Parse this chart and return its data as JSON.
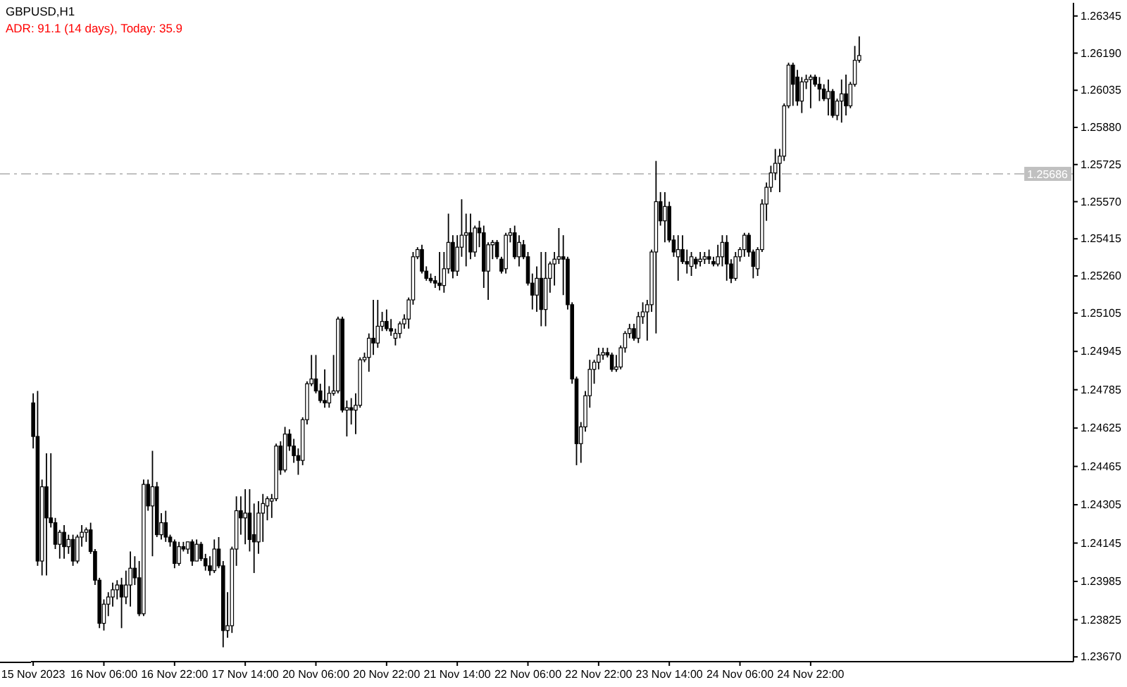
{
  "chart_data": {
    "type": "candlestick",
    "title": "GBPUSD,H1",
    "annotations": [
      "ADR: 91.1 (14 days), Today: 35.9"
    ],
    "color": "#000000",
    "ylim": [
      1.2365,
      1.264
    ],
    "yticks": [
      {
        "value": 1.2367,
        "label": "1.23670"
      },
      1.23825,
      1.23985,
      1.24145,
      1.24305,
      1.24465,
      1.24625,
      1.24785,
      1.24945,
      1.25105,
      {
        "value": 1.2526,
        "label": "1.25260"
      },
      1.25415,
      {
        "value": 1.2557,
        "label": "1.25570"
      },
      1.25725,
      {
        "value": 1.2588,
        "label": "1.25880"
      },
      1.26035,
      {
        "value": 1.2619,
        "label": "1.26190"
      },
      1.26345
    ],
    "ref_lines": [
      {
        "axis": "y",
        "value": 1.25686,
        "label": "1.25686",
        "color": "#c0c0c0",
        "line_style": "dashed"
      }
    ],
    "categories": [
      "15 Nov 2023",
      null,
      null,
      null,
      null,
      null,
      null,
      null,
      null,
      null,
      null,
      null,
      null,
      null,
      null,
      null,
      "16 Nov 06:00",
      null,
      null,
      null,
      null,
      null,
      null,
      null,
      null,
      null,
      null,
      null,
      null,
      null,
      null,
      null,
      "16 Nov 22:00",
      null,
      null,
      null,
      null,
      null,
      null,
      null,
      null,
      null,
      null,
      null,
      null,
      null,
      null,
      null,
      "17 Nov 14:00",
      null,
      null,
      null,
      null,
      null,
      null,
      null,
      null,
      null,
      null,
      null,
      null,
      null,
      null,
      null,
      "20 Nov 06:00",
      null,
      null,
      null,
      null,
      null,
      null,
      null,
      null,
      null,
      null,
      null,
      null,
      null,
      null,
      null,
      "20 Nov 22:00",
      null,
      null,
      null,
      null,
      null,
      null,
      null,
      null,
      null,
      null,
      null,
      null,
      null,
      null,
      null,
      "21 Nov 14:00",
      null,
      null,
      null,
      null,
      null,
      null,
      null,
      null,
      null,
      null,
      null,
      null,
      null,
      null,
      null,
      "22 Nov 06:00",
      null,
      null,
      null,
      null,
      null,
      null,
      null,
      null,
      null,
      null,
      null,
      null,
      null,
      null,
      null,
      "22 Nov 22:00",
      null,
      null,
      null,
      null,
      null,
      null,
      null,
      null,
      null,
      null,
      null,
      null,
      null,
      null,
      null,
      "23 Nov 14:00",
      null,
      null,
      null,
      null,
      null,
      null,
      null,
      null,
      null,
      null,
      null,
      null,
      null,
      null,
      null,
      "24 Nov 06:00",
      null,
      null,
      null,
      null,
      null,
      null,
      null,
      null,
      null,
      null,
      null,
      null,
      null,
      null,
      null,
      "24 Nov 22:00",
      null,
      null,
      null,
      null,
      null,
      null,
      null,
      null,
      null,
      null,
      null,
      null,
      null,
      null,
      null,
      null,
      null,
      null,
      null,
      null,
      null,
      null,
      null,
      null,
      null,
      null,
      null,
      null,
      null,
      null,
      null,
      null,
      null,
      null,
      null,
      null,
      null,
      null,
      null,
      null,
      null,
      null,
      null,
      null,
      null,
      null,
      null,
      null,
      null,
      null,
      null,
      null,
      null,
      null,
      null,
      null,
      null,
      null,
      null
    ],
    "ohlc": [
      [
        1.2473,
        1.2477,
        1.2454,
        1.2459
      ],
      [
        1.2459,
        1.2478,
        1.2405,
        1.2407
      ],
      [
        1.2407,
        1.2441,
        1.2401,
        1.2438
      ],
      [
        1.2438,
        1.2452,
        1.2401,
        1.2425
      ],
      [
        1.2425,
        1.2452,
        1.2421,
        1.2423
      ],
      [
        1.2423,
        1.2425,
        1.2412,
        1.2414
      ],
      [
        1.2414,
        1.242,
        1.2408,
        1.2419
      ],
      [
        1.2419,
        1.2422,
        1.2408,
        1.2413
      ],
      [
        1.2413,
        1.2418,
        1.241,
        1.2416
      ],
      [
        1.2416,
        1.2418,
        1.2405,
        1.2407
      ],
      [
        1.2407,
        1.2418,
        1.2406,
        1.2417
      ],
      [
        1.2417,
        1.2422,
        1.2413,
        1.2419
      ],
      [
        1.2419,
        1.2421,
        1.2415,
        1.242
      ],
      [
        1.242,
        1.2423,
        1.241,
        1.2411
      ],
      [
        1.2411,
        1.2412,
        1.2397,
        1.2399
      ],
      [
        1.2399,
        1.24,
        1.2379,
        1.2381
      ],
      [
        1.2381,
        1.2391,
        1.2378,
        1.2389
      ],
      [
        1.2389,
        1.2394,
        1.2384,
        1.2392
      ],
      [
        1.2392,
        1.2398,
        1.2388,
        1.2395
      ],
      [
        1.2395,
        1.2399,
        1.2391,
        1.2397
      ],
      [
        1.2397,
        1.24,
        1.2379,
        1.2392
      ],
      [
        1.2392,
        1.2403,
        1.2389,
        1.2397
      ],
      [
        1.2397,
        1.2411,
        1.2388,
        1.2404
      ],
      [
        1.2404,
        1.2409,
        1.2397,
        1.24
      ],
      [
        1.24,
        1.2407,
        1.2384,
        1.2385
      ],
      [
        1.2385,
        1.2441,
        1.2384,
        1.2439
      ],
      [
        1.2439,
        1.2441,
        1.2428,
        1.243
      ],
      [
        1.243,
        1.2453,
        1.2409,
        1.2438
      ],
      [
        1.2438,
        1.244,
        1.2417,
        1.2418
      ],
      [
        1.2418,
        1.2427,
        1.2416,
        1.2423
      ],
      [
        1.2423,
        1.2428,
        1.2415,
        1.2417
      ],
      [
        1.2417,
        1.2418,
        1.2413,
        1.2415
      ],
      [
        1.2415,
        1.2416,
        1.2404,
        1.2406
      ],
      [
        1.2406,
        1.2415,
        1.2405,
        1.2413
      ],
      [
        1.2413,
        1.2415,
        1.2411,
        1.2412
      ],
      [
        1.2412,
        1.2415,
        1.241,
        1.2415
      ],
      [
        1.2415,
        1.2416,
        1.2405,
        1.2407
      ],
      [
        1.2407,
        1.2416,
        1.2407,
        1.2414
      ],
      [
        1.2414,
        1.2415,
        1.2407,
        1.2408
      ],
      [
        1.2408,
        1.241,
        1.2403,
        1.2405
      ],
      [
        1.2405,
        1.2409,
        1.2401,
        1.2403
      ],
      [
        1.2403,
        1.2416,
        1.2402,
        1.2412
      ],
      [
        1.2412,
        1.2417,
        1.2404,
        1.2405
      ],
      [
        1.2405,
        1.2407,
        1.2371,
        1.2378
      ],
      [
        1.2378,
        1.2394,
        1.2375,
        1.238
      ],
      [
        1.238,
        1.2413,
        1.2377,
        1.2412
      ],
      [
        1.2412,
        1.2434,
        1.2405,
        1.2428
      ],
      [
        1.2428,
        1.2434,
        1.2418,
        1.2425
      ],
      [
        1.2425,
        1.2437,
        1.2414,
        1.2427
      ],
      [
        1.2427,
        1.2437,
        1.2411,
        1.2416
      ],
      [
        1.2418,
        1.2431,
        1.2402,
        1.2415
      ],
      [
        1.2415,
        1.2432,
        1.241,
        1.2427
      ],
      [
        1.2427,
        1.2435,
        1.2415,
        1.2431
      ],
      [
        1.243,
        1.2434,
        1.2424,
        1.2433
      ],
      [
        1.2432,
        1.2435,
        1.2425,
        1.2433
      ],
      [
        1.2433,
        1.2456,
        1.2432,
        1.2455
      ],
      [
        1.2455,
        1.2457,
        1.2443,
        1.2445
      ],
      [
        1.2445,
        1.2463,
        1.2444,
        1.246
      ],
      [
        1.246,
        1.2462,
        1.2453,
        1.2455
      ],
      [
        1.2455,
        1.2458,
        1.2448,
        1.2451
      ],
      [
        1.2451,
        1.2454,
        1.2443,
        1.2449
      ],
      [
        1.2449,
        1.2467,
        1.2447,
        1.2466
      ],
      [
        1.2466,
        1.2482,
        1.2464,
        1.2481
      ],
      [
        1.2481,
        1.2493,
        1.248,
        1.2483
      ],
      [
        1.2483,
        1.2493,
        1.2477,
        1.2478
      ],
      [
        1.2478,
        1.2481,
        1.2473,
        1.2474
      ],
      [
        1.2474,
        1.2487,
        1.2471,
        1.2473
      ],
      [
        1.2473,
        1.248,
        1.2471,
        1.2477
      ],
      [
        1.2477,
        1.2493,
        1.2476,
        1.2478
      ],
      [
        1.2478,
        1.2509,
        1.2477,
        1.2508
      ],
      [
        1.2508,
        1.2509,
        1.2469,
        1.247
      ],
      [
        1.247,
        1.2474,
        1.2459,
        1.2471
      ],
      [
        1.2471,
        1.2475,
        1.2464,
        1.247
      ],
      [
        1.247,
        1.2477,
        1.246,
        1.2472
      ],
      [
        1.2472,
        1.2492,
        1.2471,
        1.2491
      ],
      [
        1.2491,
        1.2494,
        1.249,
        1.2492
      ],
      [
        1.2492,
        1.2502,
        1.2486,
        1.25
      ],
      [
        1.25,
        1.2516,
        1.2493,
        1.2498
      ],
      [
        1.2498,
        1.2516,
        1.2496,
        1.2505
      ],
      [
        1.2505,
        1.2511,
        1.2503,
        1.2507
      ],
      [
        1.2507,
        1.2512,
        1.2503,
        1.2504
      ],
      [
        1.2504,
        1.2508,
        1.2501,
        1.2503
      ],
      [
        1.25,
        1.2504,
        1.2497,
        1.2502
      ],
      [
        1.2502,
        1.2507,
        1.25,
        1.2506
      ],
      [
        1.2506,
        1.251,
        1.2504,
        1.2508
      ],
      [
        1.2508,
        1.2517,
        1.2504,
        1.2516
      ],
      [
        1.2516,
        1.2536,
        1.2514,
        1.2534
      ],
      [
        1.2534,
        1.2538,
        1.2533,
        1.2537
      ],
      [
        1.2537,
        1.2539,
        1.2527,
        1.2528
      ],
      [
        1.2528,
        1.253,
        1.2524,
        1.2525
      ],
      [
        1.2525,
        1.2527,
        1.2523,
        1.2524
      ],
      [
        1.2524,
        1.2526,
        1.2521,
        1.2523
      ],
      [
        1.2523,
        1.2536,
        1.252,
        1.2522
      ],
      [
        1.2522,
        1.2536,
        1.2519,
        1.2529
      ],
      [
        1.2529,
        1.2552,
        1.2527,
        1.254
      ],
      [
        1.254,
        1.2543,
        1.2525,
        1.2528
      ],
      [
        1.2528,
        1.2543,
        1.2526,
        1.2538
      ],
      [
        1.2538,
        1.2558,
        1.2534,
        1.2543
      ],
      [
        1.2543,
        1.2552,
        1.253,
        1.2544
      ],
      [
        1.2544,
        1.2552,
        1.2533,
        1.2536
      ],
      [
        1.2536,
        1.2547,
        1.2534,
        1.2546
      ],
      [
        1.2546,
        1.2549,
        1.2538,
        1.2544
      ],
      [
        1.2544,
        1.2547,
        1.2521,
        1.2528
      ],
      [
        1.2528,
        1.254,
        1.2516,
        1.2539
      ],
      [
        1.2539,
        1.2541,
        1.2533,
        1.254
      ],
      [
        1.254,
        1.2541,
        1.2533,
        1.2534
      ],
      [
        1.2533,
        1.2534,
        1.2527,
        1.2528
      ],
      [
        1.2529,
        1.2544,
        1.2527,
        1.2543
      ],
      [
        1.2543,
        1.2546,
        1.254,
        1.2544
      ],
      [
        1.2544,
        1.2547,
        1.2533,
        1.2534
      ],
      [
        1.2534,
        1.2543,
        1.253,
        1.254
      ],
      [
        1.2539,
        1.2541,
        1.2533,
        1.2534
      ],
      [
        1.2534,
        1.2536,
        1.2522,
        1.2523
      ],
      [
        1.2523,
        1.2527,
        1.2512,
        1.2518
      ],
      [
        1.2518,
        1.253,
        1.2511,
        1.2525
      ],
      [
        1.2525,
        1.2536,
        1.2505,
        1.2512
      ],
      [
        1.2512,
        1.2536,
        1.2505,
        1.2525
      ],
      [
        1.2525,
        1.2532,
        1.2519,
        1.2531
      ],
      [
        1.2531,
        1.2536,
        1.2522,
        1.2533
      ],
      [
        1.2533,
        1.2546,
        1.2531,
        1.2534
      ],
      [
        1.2534,
        1.2543,
        1.2518,
        1.2533
      ],
      [
        1.2533,
        1.2534,
        1.2512,
        1.2514
      ],
      [
        1.2514,
        1.2515,
        1.2481,
        1.2483
      ],
      [
        1.2483,
        1.2484,
        1.2447,
        1.2456
      ],
      [
        1.2456,
        1.2465,
        1.2448,
        1.2463
      ],
      [
        1.2463,
        1.2478,
        1.2461,
        1.2476
      ],
      [
        1.2476,
        1.2491,
        1.2471,
        1.2487
      ],
      [
        1.2487,
        1.2491,
        1.2481,
        1.249
      ],
      [
        1.249,
        1.2496,
        1.2487,
        1.2493
      ],
      [
        1.2493,
        1.2496,
        1.2491,
        1.2494
      ],
      [
        1.2494,
        1.2496,
        1.2492,
        1.2493
      ],
      [
        1.2493,
        1.2494,
        1.2486,
        1.2487
      ],
      [
        1.2487,
        1.2493,
        1.2486,
        1.2488
      ],
      [
        1.2488,
        1.2497,
        1.2487,
        1.2496
      ],
      [
        1.2496,
        1.2503,
        1.2494,
        1.2502
      ],
      [
        1.2502,
        1.2506,
        1.25,
        1.2504
      ],
      [
        1.2504,
        1.2506,
        1.2499,
        1.25
      ],
      [
        1.25,
        1.2511,
        1.2498,
        1.2509
      ],
      [
        1.2509,
        1.2515,
        1.2506,
        1.2511
      ],
      [
        1.2511,
        1.2516,
        1.2499,
        1.2514
      ],
      [
        1.2514,
        1.2537,
        1.2511,
        1.2536
      ],
      [
        1.2536,
        1.2574,
        1.2502,
        1.2557
      ],
      [
        1.2557,
        1.2561,
        1.2547,
        1.2549
      ],
      [
        1.2549,
        1.2561,
        1.254,
        1.2555
      ],
      [
        1.2555,
        1.2557,
        1.254,
        1.2541
      ],
      [
        1.2541,
        1.2543,
        1.2534,
        1.2536
      ],
      [
        1.2534,
        1.2543,
        1.2524,
        1.2537
      ],
      [
        1.2537,
        1.2543,
        1.2531,
        1.2532
      ],
      [
        1.2532,
        1.2537,
        1.2527,
        1.2531
      ],
      [
        1.253,
        1.2536,
        1.2526,
        1.2534
      ],
      [
        1.2533,
        1.2534,
        1.2529,
        1.2531
      ],
      [
        1.2532,
        1.2536,
        1.253,
        1.2533
      ],
      [
        1.2533,
        1.2536,
        1.2531,
        1.2534
      ],
      [
        1.2534,
        1.2537,
        1.2531,
        1.2533
      ],
      [
        1.2532,
        1.2534,
        1.253,
        1.2531
      ],
      [
        1.2531,
        1.2539,
        1.253,
        1.2534
      ],
      [
        1.2534,
        1.2543,
        1.253,
        1.254
      ],
      [
        1.254,
        1.2543,
        1.2524,
        1.2531
      ],
      [
        1.2531,
        1.2533,
        1.2523,
        1.2525
      ],
      [
        1.2525,
        1.2536,
        1.2524,
        1.2534
      ],
      [
        1.2534,
        1.2538,
        1.2532,
        1.2537
      ],
      [
        1.2537,
        1.2544,
        1.2534,
        1.2543
      ],
      [
        1.2543,
        1.2544,
        1.2534,
        1.2536
      ],
      [
        1.2536,
        1.2537,
        1.2525,
        1.253
      ],
      [
        1.2529,
        1.2538,
        1.2526,
        1.2537
      ],
      [
        1.2537,
        1.2558,
        1.2536,
        1.2556
      ],
      [
        1.2556,
        1.2565,
        1.2549,
        1.2563
      ],
      [
        1.2563,
        1.2572,
        1.2561,
        1.2569
      ],
      [
        1.2569,
        1.2579,
        1.2566,
        1.2573
      ],
      [
        1.2573,
        1.2579,
        1.2561,
        1.2576
      ],
      [
        1.2576,
        1.2598,
        1.2574,
        1.2597
      ],
      [
        1.2597,
        1.2615,
        1.2596,
        1.2614
      ],
      [
        1.2614,
        1.2615,
        1.2597,
        1.2606
      ],
      [
        1.2609,
        1.2612,
        1.2597,
        1.2599
      ],
      [
        1.2599,
        1.2609,
        1.2594,
        1.2607
      ],
      [
        1.2607,
        1.261,
        1.2604,
        1.2608
      ],
      [
        1.2608,
        1.261,
        1.2596,
        1.2609
      ],
      [
        1.2609,
        1.261,
        1.2605,
        1.2606
      ],
      [
        1.2606,
        1.2609,
        1.2599,
        1.2604
      ],
      [
        1.2604,
        1.2606,
        1.2599,
        1.26
      ],
      [
        1.26,
        1.2608,
        1.2593,
        1.2603
      ],
      [
        1.2603,
        1.2604,
        1.2592,
        1.2593
      ],
      [
        1.2593,
        1.26,
        1.2591,
        1.2599
      ],
      [
        1.2599,
        1.2608,
        1.259,
        1.2602
      ],
      [
        1.2602,
        1.261,
        1.2593,
        1.2597
      ],
      [
        1.2597,
        1.2607,
        1.2596,
        1.2606
      ],
      [
        1.2606,
        1.2622,
        1.2605,
        1.2616
      ],
      [
        1.2616,
        1.2626,
        1.2615,
        1.2618
      ],
      null,
      null,
      null,
      null,
      null,
      null,
      null,
      null,
      null,
      null,
      null,
      null,
      null,
      null,
      null,
      null,
      null,
      null,
      null,
      null,
      null,
      null,
      null,
      null,
      null,
      null,
      null,
      null,
      null,
      null,
      null,
      null,
      null,
      null,
      null,
      null,
      null,
      null,
      null,
      null,
      null,
      null,
      null,
      null,
      null,
      null,
      null,
      null
    ]
  }
}
